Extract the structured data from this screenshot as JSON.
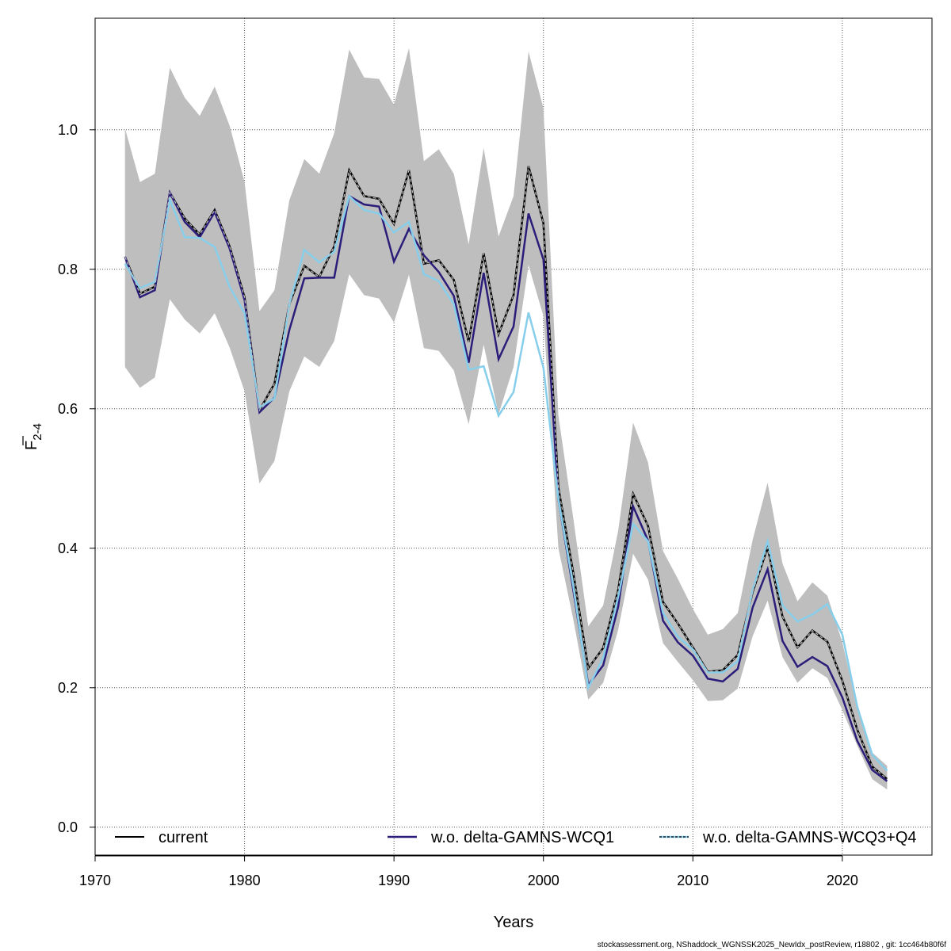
{
  "chart_data": {
    "type": "line",
    "xlabel": "Years",
    "ylabel": {
      "base": "F",
      "subscript": "2-4"
    },
    "xlim": [
      1970,
      2026
    ],
    "ylim": [
      -0.04,
      1.16
    ],
    "xticks": [
      1970,
      1980,
      1990,
      2000,
      2010,
      2020
    ],
    "yticks": [
      0.0,
      0.2,
      0.4,
      0.6,
      0.8,
      1.0
    ],
    "ytick_labels": [
      "0.0",
      "0.2",
      "0.4",
      "0.6",
      "0.8",
      "1.0"
    ],
    "grid": true,
    "legend_position": "bottom",
    "x": [
      1972,
      1973,
      1974,
      1975,
      1976,
      1977,
      1978,
      1979,
      1980,
      1981,
      1982,
      1983,
      1984,
      1985,
      1986,
      1987,
      1988,
      1989,
      1990,
      1991,
      1992,
      1993,
      1994,
      1995,
      1996,
      1997,
      1998,
      1999,
      2000,
      2001,
      2002,
      2003,
      2004,
      2005,
      2006,
      2007,
      2008,
      2009,
      2010,
      2011,
      2012,
      2013,
      2014,
      2015,
      2016,
      2017,
      2018,
      2019,
      2020,
      2021,
      2022,
      2023
    ],
    "band": {
      "lower": [
        0.66,
        0.63,
        0.645,
        0.757,
        0.728,
        0.708,
        0.737,
        0.688,
        0.625,
        0.493,
        0.525,
        0.625,
        0.675,
        0.66,
        0.697,
        0.793,
        0.763,
        0.758,
        0.724,
        0.792,
        0.687,
        0.683,
        0.655,
        0.578,
        0.692,
        0.592,
        0.66,
        0.806,
        0.733,
        0.4,
        0.298,
        0.183,
        0.207,
        0.283,
        0.392,
        0.355,
        0.264,
        0.237,
        0.211,
        0.181,
        0.182,
        0.199,
        0.274,
        0.325,
        0.244,
        0.207,
        0.228,
        0.214,
        0.168,
        0.117,
        0.069,
        0.054
      ],
      "upper": [
        1.002,
        0.925,
        0.937,
        1.089,
        1.046,
        1.02,
        1.062,
        1.006,
        0.925,
        0.74,
        0.77,
        0.899,
        0.958,
        0.937,
        0.995,
        1.115,
        1.075,
        1.073,
        1.036,
        1.117,
        0.955,
        0.972,
        0.937,
        0.836,
        0.974,
        0.847,
        0.905,
        1.112,
        1.031,
        0.59,
        0.443,
        0.288,
        0.318,
        0.425,
        0.58,
        0.523,
        0.396,
        0.356,
        0.313,
        0.276,
        0.284,
        0.307,
        0.412,
        0.494,
        0.378,
        0.324,
        0.351,
        0.332,
        0.265,
        0.172,
        0.107,
        0.088
      ]
    },
    "series": [
      {
        "name": "current",
        "color": "#000000",
        "values": [
          0.818,
          0.765,
          0.775,
          0.91,
          0.873,
          0.85,
          0.885,
          0.833,
          0.76,
          0.598,
          0.636,
          0.75,
          0.805,
          0.789,
          0.833,
          0.942,
          0.905,
          0.901,
          0.865,
          0.942,
          0.808,
          0.813,
          0.785,
          0.696,
          0.823,
          0.707,
          0.763,
          0.948,
          0.866,
          0.487,
          0.365,
          0.228,
          0.257,
          0.34,
          0.478,
          0.432,
          0.323,
          0.292,
          0.258,
          0.223,
          0.225,
          0.247,
          0.337,
          0.401,
          0.302,
          0.258,
          0.282,
          0.266,
          0.21,
          0.14,
          0.087,
          0.069
        ]
      },
      {
        "name": "w.o. delta-GAMNS-WCQ1",
        "color": "#2b1e7a",
        "values": [
          0.818,
          0.76,
          0.77,
          0.91,
          0.868,
          0.846,
          0.882,
          0.83,
          0.756,
          0.595,
          0.616,
          0.713,
          0.787,
          0.788,
          0.788,
          0.905,
          0.893,
          0.89,
          0.811,
          0.858,
          0.82,
          0.796,
          0.762,
          0.666,
          0.795,
          0.671,
          0.718,
          0.88,
          0.814,
          0.47,
          0.34,
          0.204,
          0.232,
          0.316,
          0.46,
          0.411,
          0.296,
          0.265,
          0.246,
          0.213,
          0.209,
          0.227,
          0.315,
          0.37,
          0.267,
          0.23,
          0.244,
          0.231,
          0.186,
          0.124,
          0.082,
          0.066
        ]
      },
      {
        "name": "w.o. delta-GAMNS-WCQ3+Q4",
        "color": "#87ceeb",
        "values": [
          0.808,
          0.773,
          0.782,
          0.9,
          0.846,
          0.845,
          0.832,
          0.775,
          0.737,
          0.602,
          0.615,
          0.75,
          0.828,
          0.81,
          0.825,
          0.905,
          0.885,
          0.88,
          0.853,
          0.868,
          0.793,
          0.783,
          0.75,
          0.656,
          0.661,
          0.59,
          0.624,
          0.738,
          0.659,
          0.47,
          0.346,
          0.2,
          0.243,
          0.33,
          0.435,
          0.41,
          0.307,
          0.273,
          0.255,
          0.222,
          0.222,
          0.238,
          0.34,
          0.41,
          0.318,
          0.295,
          0.305,
          0.32,
          0.276,
          0.173,
          0.104,
          0.081
        ]
      }
    ]
  },
  "footer": "stockassessment.org, NShaddock_WGNSSK2025_NewIdx_postReview, r18802 , git: 1cc464b80f6f"
}
